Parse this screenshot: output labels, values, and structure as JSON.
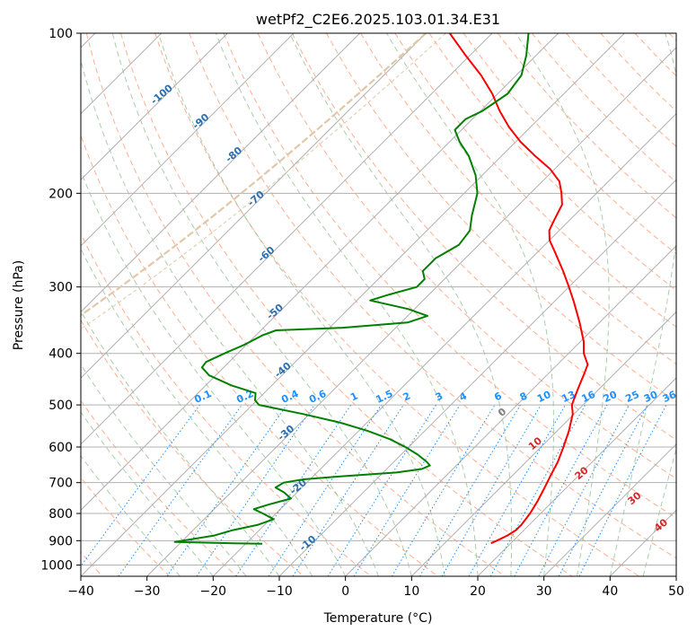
{
  "chart_data": {
    "type": "line",
    "subtype": "skew-T log-P diagram",
    "title": "wetPf2_C2E6.2025.103.01.34.E31",
    "xlabel": "Temperature (°C)",
    "ylabel": "Pressure (hPa)",
    "xlim": [
      -40,
      50
    ],
    "ylim": [
      1050,
      100
    ],
    "y_scale": "log",
    "grid": true,
    "x_ticks": [
      -40,
      -30,
      -20,
      -10,
      0,
      10,
      20,
      30,
      40,
      50
    ],
    "x_tick_labels": [
      "−40",
      "−30",
      "−20",
      "−10",
      "0",
      "10",
      "20",
      "30",
      "40",
      "50"
    ],
    "y_ticks": [
      1000,
      900,
      800,
      700,
      600,
      500,
      400,
      300,
      200,
      100
    ],
    "y_tick_labels": [
      "1000",
      "900",
      "800",
      "700",
      "600",
      "500",
      "400",
      "300",
      "200",
      "100"
    ],
    "colors": {
      "temperature": "#ff0000",
      "dewpoint": "#008000",
      "isotherm": "#b0b0b0",
      "dry_adiabat": "#ffa07a",
      "moist_adiabat": "#8fbc8f",
      "mixing_ratio": "#1e90ff",
      "dry_label": "#2b6fb0",
      "moist_label": "#d62728",
      "zero_label": "#808080",
      "dgz_arc": "#e0c8a8"
    },
    "series": [
      {
        "name": "temperature",
        "points": [
          {
            "p": 910,
            "t": 17.0
          },
          {
            "p": 900,
            "t": 17.5
          },
          {
            "p": 880,
            "t": 18.3
          },
          {
            "p": 860,
            "t": 18.8
          },
          {
            "p": 840,
            "t": 18.8
          },
          {
            "p": 800,
            "t": 18.4
          },
          {
            "p": 760,
            "t": 17.7
          },
          {
            "p": 720,
            "t": 16.8
          },
          {
            "p": 680,
            "t": 15.8
          },
          {
            "p": 640,
            "t": 14.8
          },
          {
            "p": 600,
            "t": 13.4
          },
          {
            "p": 560,
            "t": 11.8
          },
          {
            "p": 520,
            "t": 9.8
          },
          {
            "p": 500,
            "t": 8.3
          },
          {
            "p": 480,
            "t": 7.4
          },
          {
            "p": 460,
            "t": 6.5
          },
          {
            "p": 440,
            "t": 5.6
          },
          {
            "p": 420,
            "t": 4.6
          },
          {
            "p": 400,
            "t": 2.3
          },
          {
            "p": 380,
            "t": 0.5
          },
          {
            "p": 350,
            "t": -3.0
          },
          {
            "p": 320,
            "t": -7.0
          },
          {
            "p": 300,
            "t": -10.0
          },
          {
            "p": 280,
            "t": -13.3
          },
          {
            "p": 260,
            "t": -17.0
          },
          {
            "p": 245,
            "t": -20.0
          },
          {
            "p": 235,
            "t": -21.5
          },
          {
            "p": 225,
            "t": -22.3
          },
          {
            "p": 210,
            "t": -23.5
          },
          {
            "p": 200,
            "t": -25.3
          },
          {
            "p": 190,
            "t": -27.4
          },
          {
            "p": 180,
            "t": -30.7
          },
          {
            "p": 170,
            "t": -35.0
          },
          {
            "p": 160,
            "t": -39.3
          },
          {
            "p": 150,
            "t": -43.3
          },
          {
            "p": 140,
            "t": -47.1
          },
          {
            "p": 130,
            "t": -50.8
          },
          {
            "p": 120,
            "t": -55.3
          },
          {
            "p": 110,
            "t": -60.7
          },
          {
            "p": 100,
            "t": -66.4
          }
        ]
      },
      {
        "name": "dewpoint",
        "points": [
          {
            "p": 912,
            "t": -17.5
          },
          {
            "p": 910,
            "t": -22.0
          },
          {
            "p": 905,
            "t": -31.0
          },
          {
            "p": 900,
            "t": -30.0
          },
          {
            "p": 880,
            "t": -26.0
          },
          {
            "p": 860,
            "t": -24.0
          },
          {
            "p": 840,
            "t": -21.0
          },
          {
            "p": 820,
            "t": -19.5
          },
          {
            "p": 800,
            "t": -22.0
          },
          {
            "p": 785,
            "t": -24.0
          },
          {
            "p": 770,
            "t": -22.5
          },
          {
            "p": 750,
            "t": -20.0
          },
          {
            "p": 730,
            "t": -22.0
          },
          {
            "p": 715,
            "t": -24.0
          },
          {
            "p": 700,
            "t": -23.5
          },
          {
            "p": 690,
            "t": -21.0
          },
          {
            "p": 680,
            "t": -15.0
          },
          {
            "p": 670,
            "t": -8.0
          },
          {
            "p": 660,
            "t": -4.7
          },
          {
            "p": 650,
            "t": -4.0
          },
          {
            "p": 640,
            "t": -5.0
          },
          {
            "p": 620,
            "t": -7.5
          },
          {
            "p": 600,
            "t": -10.5
          },
          {
            "p": 580,
            "t": -14.0
          },
          {
            "p": 560,
            "t": -18.5
          },
          {
            "p": 540,
            "t": -24.0
          },
          {
            "p": 520,
            "t": -31.0
          },
          {
            "p": 500,
            "t": -39.0
          },
          {
            "p": 490,
            "t": -40.3
          },
          {
            "p": 475,
            "t": -41.3
          },
          {
            "p": 460,
            "t": -46.0
          },
          {
            "p": 440,
            "t": -51.0
          },
          {
            "p": 425,
            "t": -53.3
          },
          {
            "p": 415,
            "t": -53.5
          },
          {
            "p": 400,
            "t": -52.0
          },
          {
            "p": 385,
            "t": -50.3
          },
          {
            "p": 370,
            "t": -49.0
          },
          {
            "p": 362,
            "t": -47.7
          },
          {
            "p": 358,
            "t": -38.0
          },
          {
            "p": 350,
            "t": -29.0
          },
          {
            "p": 340,
            "t": -27.0
          },
          {
            "p": 330,
            "t": -31.0
          },
          {
            "p": 318,
            "t": -38.0
          },
          {
            "p": 310,
            "t": -36.0
          },
          {
            "p": 300,
            "t": -33.0
          },
          {
            "p": 290,
            "t": -33.0
          },
          {
            "p": 280,
            "t": -34.5
          },
          {
            "p": 265,
            "t": -34.5
          },
          {
            "p": 250,
            "t": -33.0
          },
          {
            "p": 235,
            "t": -33.5
          },
          {
            "p": 220,
            "t": -35.5
          },
          {
            "p": 200,
            "t": -38.0
          },
          {
            "p": 185,
            "t": -41.0
          },
          {
            "p": 170,
            "t": -45.0
          },
          {
            "p": 160,
            "t": -48.5
          },
          {
            "p": 152,
            "t": -51.0
          },
          {
            "p": 145,
            "t": -51.0
          },
          {
            "p": 140,
            "t": -49.7
          },
          {
            "p": 130,
            "t": -48.5
          },
          {
            "p": 120,
            "t": -49.2
          },
          {
            "p": 110,
            "t": -51.5
          },
          {
            "p": 100,
            "t": -54.5
          }
        ]
      }
    ],
    "dry_adiabat_labels": [
      "-100",
      "-90",
      "-80",
      "-70",
      "-60",
      "-50",
      "-40",
      "-30",
      "-20",
      "-10"
    ],
    "moist_adiabat_labels": [
      "0",
      "10",
      "20",
      "30",
      "40"
    ],
    "mixing_ratio_labels": [
      "0.1",
      "0.2",
      "0.4",
      "0.6",
      "1",
      "1.5",
      "2",
      "3",
      "4",
      "6",
      "8",
      "10",
      "13",
      "16",
      "20",
      "25",
      "30",
      "36"
    ]
  }
}
